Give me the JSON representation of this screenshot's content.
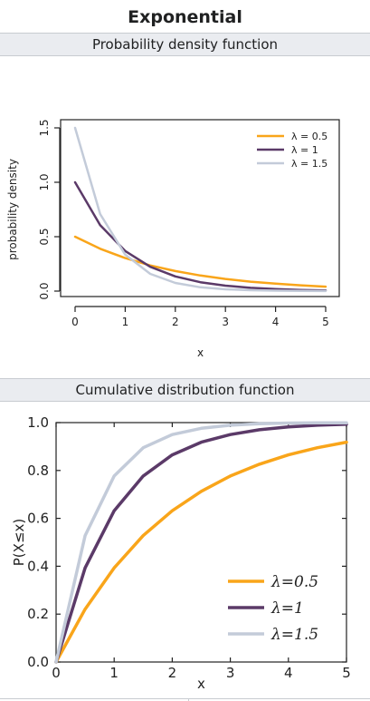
{
  "title": "Exponential",
  "colors": {
    "s1": "#f9a51a",
    "s2": "#5b3a68",
    "s3": "#c3cbd9",
    "band": "#eaecf0"
  },
  "chart_data": [
    {
      "type": "line",
      "caption": "Probability density function",
      "xlabel": "x",
      "ylabel": "probability density",
      "xlim": [
        0,
        5
      ],
      "ylim": [
        0,
        1.5
      ],
      "x_ticks": [
        "0",
        "1",
        "2",
        "3",
        "4",
        "5"
      ],
      "y_ticks": [
        "0.0",
        "0.5",
        "1.0",
        "1.5"
      ],
      "legend_position": "top-right",
      "series": [
        {
          "name": "λ = 0.5",
          "lambda": 0.5,
          "x": [
            0,
            0.5,
            1,
            1.5,
            2,
            2.5,
            3,
            3.5,
            4,
            4.5,
            5
          ],
          "values": [
            0.5,
            0.389,
            0.303,
            0.236,
            0.184,
            0.143,
            0.112,
            0.087,
            0.068,
            0.053,
            0.041
          ]
        },
        {
          "name": "λ = 1",
          "lambda": 1,
          "x": [
            0,
            0.5,
            1,
            1.5,
            2,
            2.5,
            3,
            3.5,
            4,
            4.5,
            5
          ],
          "values": [
            1.0,
            0.607,
            0.368,
            0.223,
            0.135,
            0.082,
            0.05,
            0.03,
            0.018,
            0.011,
            0.007
          ]
        },
        {
          "name": "λ = 1.5",
          "lambda": 1.5,
          "x": [
            0,
            0.5,
            1,
            1.5,
            2,
            2.5,
            3,
            3.5,
            4,
            4.5,
            5
          ],
          "values": [
            1.5,
            0.708,
            0.335,
            0.158,
            0.075,
            0.035,
            0.017,
            0.008,
            0.004,
            0.002,
            0.001
          ]
        }
      ]
    },
    {
      "type": "line",
      "caption": "Cumulative distribution function",
      "xlabel": "x",
      "ylabel": "P(X≤x)",
      "xlim": [
        0,
        5
      ],
      "ylim": [
        0,
        1.0
      ],
      "x_ticks": [
        "0",
        "1",
        "2",
        "3",
        "4",
        "5"
      ],
      "y_ticks": [
        "0.0",
        "0.2",
        "0.4",
        "0.6",
        "0.8",
        "1.0"
      ],
      "legend_position": "bottom-right",
      "series": [
        {
          "name": "λ=0.5",
          "lambda": 0.5,
          "x": [
            0,
            0.5,
            1,
            1.5,
            2,
            2.5,
            3,
            3.5,
            4,
            4.5,
            5
          ],
          "values": [
            0,
            0.221,
            0.393,
            0.528,
            0.632,
            0.713,
            0.777,
            0.826,
            0.865,
            0.895,
            0.918
          ]
        },
        {
          "name": "λ=1",
          "lambda": 1,
          "x": [
            0,
            0.5,
            1,
            1.5,
            2,
            2.5,
            3,
            3.5,
            4,
            4.5,
            5
          ],
          "values": [
            0,
            0.393,
            0.632,
            0.777,
            0.865,
            0.918,
            0.95,
            0.97,
            0.982,
            0.989,
            0.993
          ]
        },
        {
          "name": "λ=1.5",
          "lambda": 1.5,
          "x": [
            0,
            0.5,
            1,
            1.5,
            2,
            2.5,
            3,
            3.5,
            4,
            4.5,
            5
          ],
          "values": [
            0,
            0.528,
            0.777,
            0.895,
            0.95,
            0.976,
            0.989,
            0.995,
            0.998,
            0.999,
            0.999
          ]
        }
      ]
    }
  ]
}
